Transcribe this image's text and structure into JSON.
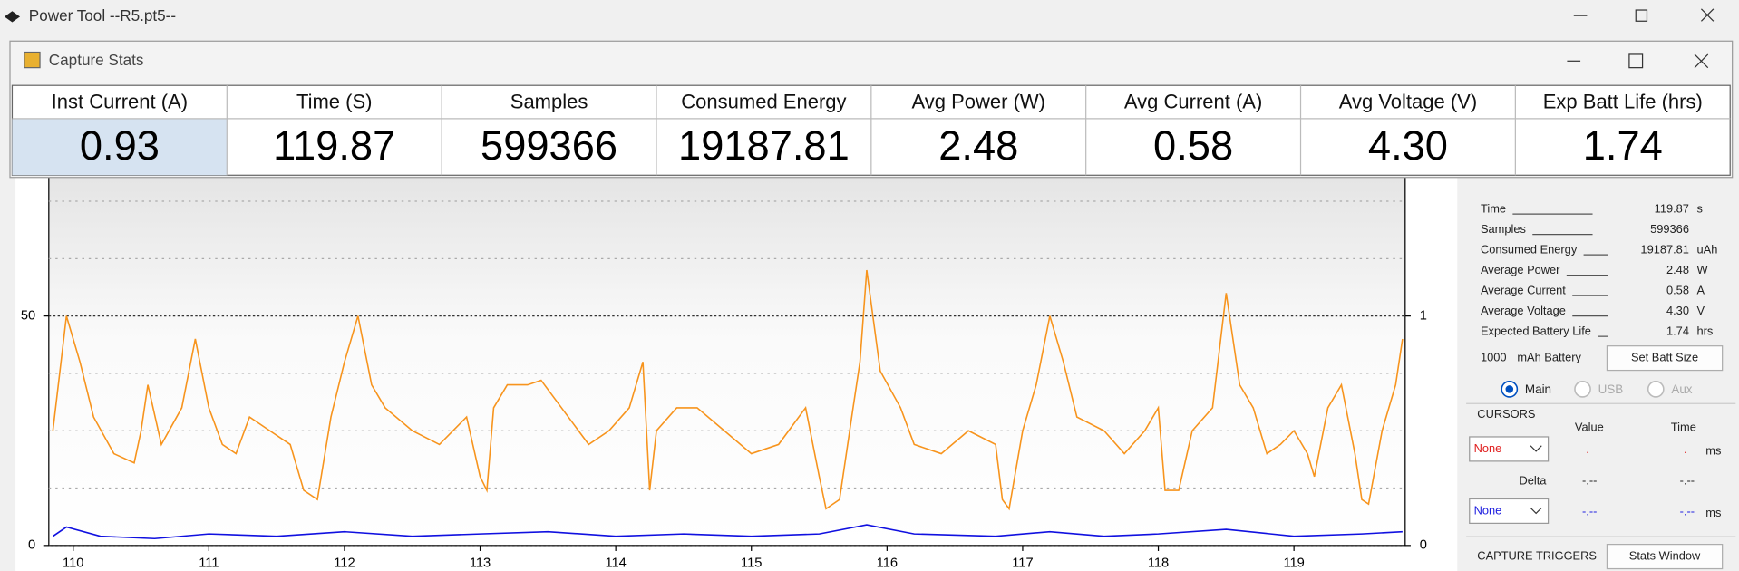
{
  "window": {
    "title": "Power Tool --R5.pt5--"
  },
  "dialog": {
    "title": "Capture Stats",
    "stats": [
      {
        "label": "Inst Current (A)",
        "value": "0.93"
      },
      {
        "label": "Time (S)",
        "value": "119.87"
      },
      {
        "label": "Samples",
        "value": "599366"
      },
      {
        "label": "Consumed Energy",
        "value": "19187.81"
      },
      {
        "label": "Avg Power (W)",
        "value": "2.48"
      },
      {
        "label": "Avg Current (A)",
        "value": "0.58"
      },
      {
        "label": "Avg Voltage (V)",
        "value": "4.30"
      },
      {
        "label": "Exp Batt Life (hrs)",
        "value": "1.74"
      }
    ]
  },
  "chart_data": {
    "type": "line",
    "xlim": [
      109.82,
      119.82
    ],
    "xticks": [
      110,
      111,
      112,
      113,
      114,
      115,
      116,
      117,
      118,
      119
    ],
    "ylim": [
      0,
      80
    ],
    "yticks": [
      0,
      50
    ],
    "minor_grid": [
      12.5,
      25,
      37.5,
      62.5,
      75
    ],
    "y2lim": [
      0,
      1.6
    ],
    "y2ticks": [
      0,
      1
    ],
    "series": [
      {
        "color": "#f7941d",
        "x": [
          109.85,
          109.95,
          110.05,
          110.15,
          110.3,
          110.45,
          110.5,
          110.55,
          110.65,
          110.8,
          110.9,
          111.0,
          111.1,
          111.2,
          111.3,
          111.45,
          111.6,
          111.7,
          111.8,
          111.9,
          112.0,
          112.1,
          112.2,
          112.3,
          112.5,
          112.7,
          112.9,
          113.0,
          113.05,
          113.1,
          113.2,
          113.35,
          113.45,
          113.6,
          113.8,
          113.95,
          114.1,
          114.2,
          114.25,
          114.3,
          114.45,
          114.6,
          114.8,
          115.0,
          115.2,
          115.4,
          115.5,
          115.55,
          115.65,
          115.75,
          115.8,
          115.85,
          115.95,
          116.1,
          116.2,
          116.4,
          116.6,
          116.8,
          116.85,
          116.9,
          117.0,
          117.1,
          117.2,
          117.3,
          117.4,
          117.6,
          117.75,
          117.9,
          118.0,
          118.05,
          118.15,
          118.25,
          118.4,
          118.5,
          118.6,
          118.7,
          118.8,
          118.9,
          119.0,
          119.1,
          119.15,
          119.25,
          119.35,
          119.45,
          119.5,
          119.55,
          119.65,
          119.75,
          119.8
        ],
        "values": [
          25,
          50,
          40,
          28,
          20,
          18,
          25,
          35,
          22,
          30,
          45,
          30,
          22,
          20,
          28,
          25,
          22,
          12,
          10,
          28,
          40,
          50,
          35,
          30,
          25,
          22,
          28,
          15,
          12,
          30,
          35,
          35,
          36,
          30,
          22,
          25,
          30,
          40,
          12,
          25,
          30,
          30,
          25,
          20,
          22,
          30,
          15,
          8,
          10,
          30,
          40,
          60,
          38,
          30,
          22,
          20,
          25,
          22,
          10,
          8,
          25,
          35,
          50,
          40,
          28,
          25,
          20,
          25,
          30,
          12,
          12,
          25,
          30,
          55,
          35,
          30,
          20,
          22,
          25,
          20,
          15,
          30,
          35,
          20,
          10,
          9,
          25,
          35,
          45
        ]
      },
      {
        "color": "#1010e0",
        "x": [
          109.85,
          109.95,
          110.2,
          110.6,
          111.0,
          111.5,
          112.0,
          112.5,
          113.0,
          113.5,
          114.0,
          114.5,
          115.0,
          115.5,
          115.85,
          116.2,
          116.8,
          117.2,
          117.6,
          118.0,
          118.5,
          119.0,
          119.5,
          119.8
        ],
        "values": [
          2,
          4,
          2,
          1.5,
          2.5,
          2,
          3,
          2,
          2.5,
          3,
          2,
          2.5,
          2,
          2.5,
          4.5,
          2.5,
          2,
          3,
          2,
          2.5,
          3.5,
          2,
          2.5,
          3
        ]
      }
    ]
  },
  "panel": {
    "rows": [
      {
        "label": "Time",
        "value": "119.87",
        "unit": "s"
      },
      {
        "label": "Samples",
        "value": "599366"
      },
      {
        "label": "Consumed Energy",
        "value": "19187.81",
        "unit": "uAh"
      },
      {
        "label": "Average Power",
        "value": "2.48",
        "unit": "W"
      },
      {
        "label": "Average Current",
        "value": "0.58",
        "unit": "A"
      },
      {
        "label": "Average Voltage",
        "value": "4.30",
        "unit": "V"
      },
      {
        "label": "Expected Battery Life",
        "value": "1.74",
        "unit": "hrs"
      }
    ],
    "battery": "1000",
    "battery_unit": "mAh Battery",
    "set_batt": "Set Batt Size",
    "radios": [
      "Main",
      "USB",
      "Aux"
    ],
    "cursors": {
      "title": "CURSORS",
      "value": "Value",
      "time": "Time",
      "select1": "None",
      "v1": "-.--",
      "t1": "-.--",
      "ms1": "ms",
      "delta": "Delta",
      "dv": "-.--",
      "dt": "-.--",
      "select2": "None",
      "v2": "-.--",
      "t2": "-.--",
      "ms2": "ms"
    },
    "triggers": "CAPTURE TRIGGERS",
    "stats_window": "Stats Window"
  }
}
